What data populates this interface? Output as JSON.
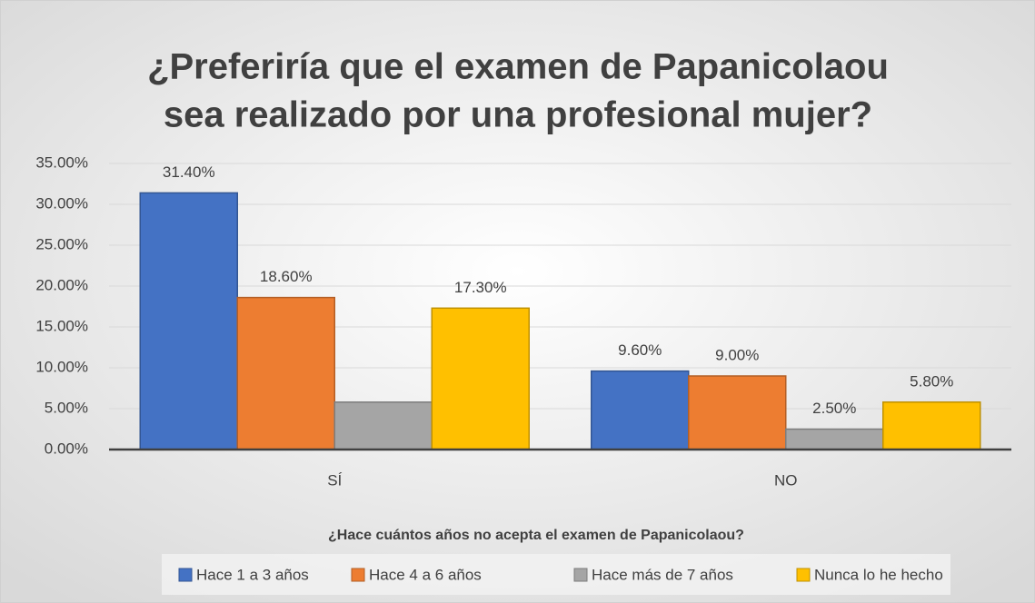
{
  "chart_data": {
    "type": "bar",
    "title": "¿Preferiría que el examen de Papanicolaou sea realizado por una profesional mujer?",
    "x_label": "¿Hace cuántos años no acepta el examen de Papanicolaou?",
    "categories": [
      "SÍ",
      "NO"
    ],
    "series": [
      {
        "name": "Hace 1 a 3 años",
        "color": "#4472c4",
        "values": [
          31.4,
          9.6
        ],
        "value_labels": [
          "31.40%",
          "9.60%"
        ]
      },
      {
        "name": "Hace 4 a 6 años",
        "color": "#ed7d31",
        "values": [
          18.6,
          9.0
        ],
        "value_labels": [
          "18.60%",
          "9.00%"
        ]
      },
      {
        "name": "Hace más de 7 años",
        "color": "#a5a5a5",
        "values": [
          5.8,
          2.5
        ],
        "value_labels": [
          null,
          "2.50%"
        ]
      },
      {
        "name": "Nunca lo he hecho",
        "color": "#ffc000",
        "values": [
          17.3,
          5.8
        ],
        "value_labels": [
          "17.30%",
          "5.80%"
        ]
      }
    ],
    "ylim": [
      0,
      35
    ],
    "yticks": [
      {
        "value": 0,
        "label": "0.00%"
      },
      {
        "value": 5,
        "label": "5.00%"
      },
      {
        "value": 10,
        "label": "10.00%"
      },
      {
        "value": 15,
        "label": "15.00%"
      },
      {
        "value": 20,
        "label": "20.00%"
      },
      {
        "value": 25,
        "label": "25.00%"
      },
      {
        "value": 30,
        "label": "30.00%"
      },
      {
        "value": 35,
        "label": "35.00%"
      }
    ],
    "grid": true,
    "legend": "bottom"
  }
}
